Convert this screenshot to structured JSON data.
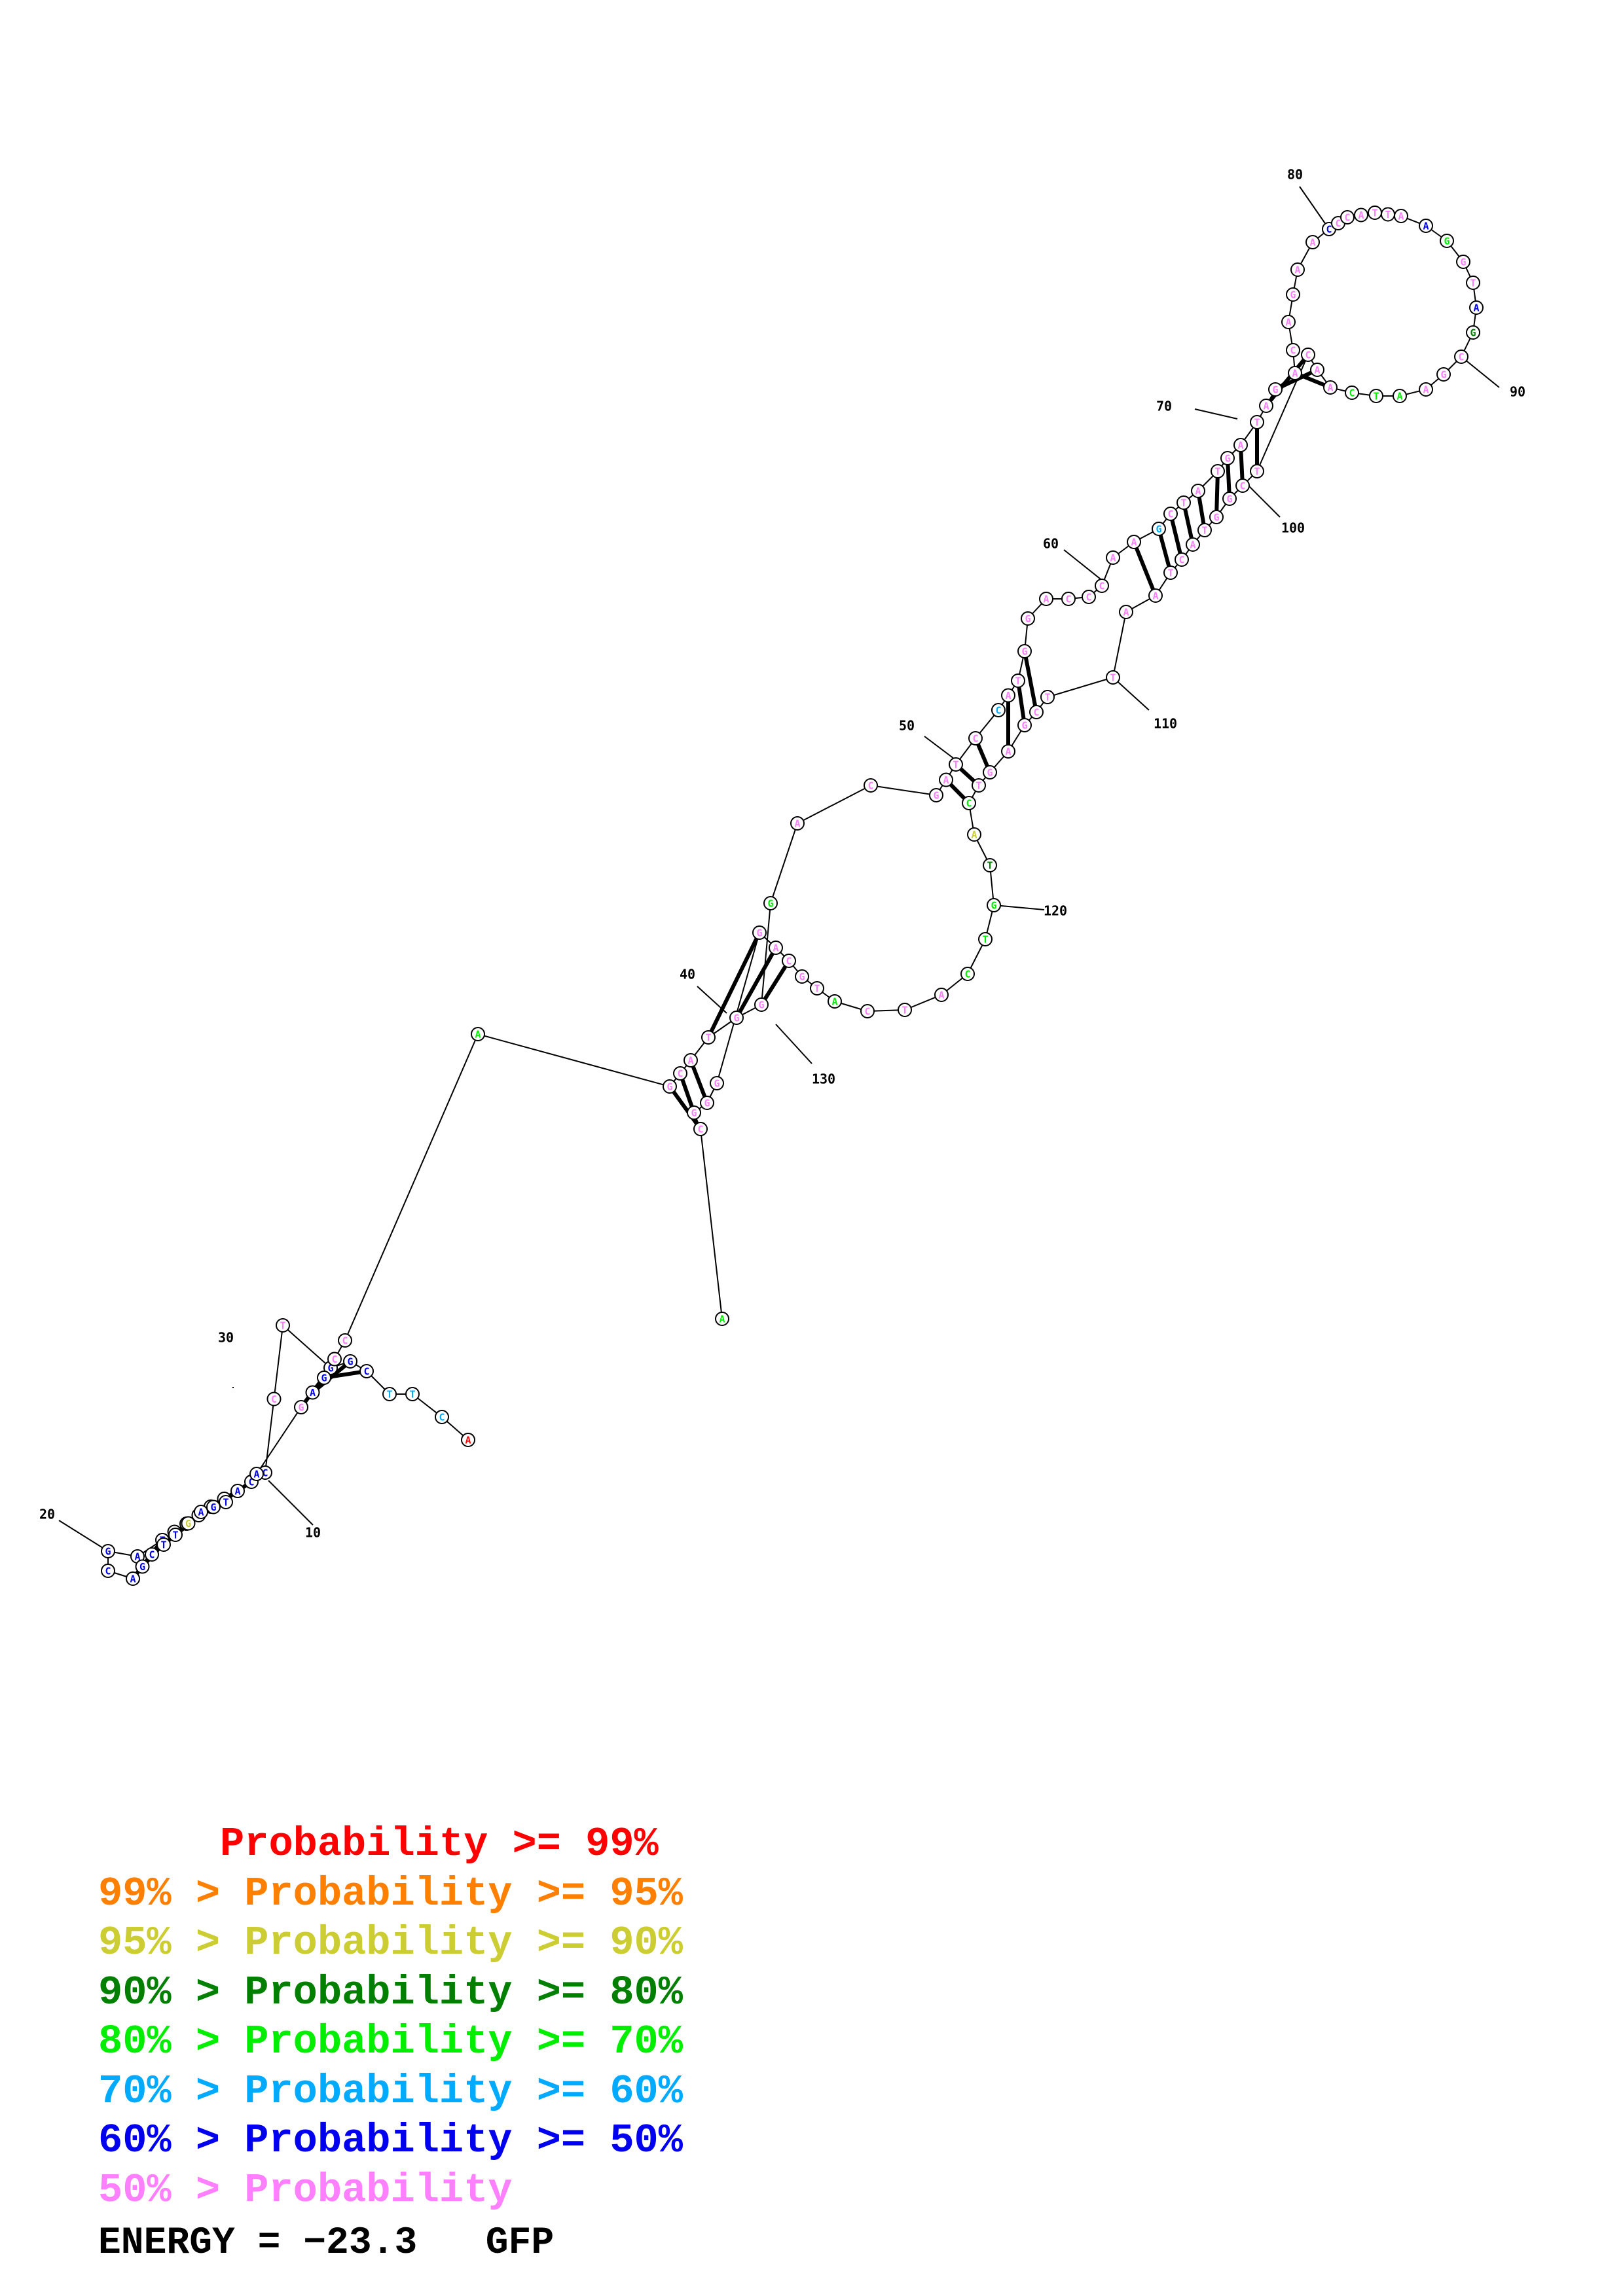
{
  "molecule_name": "GFP",
  "energy_label": "ENERGY = −23.3",
  "position_labels": [
    "10",
    "20",
    "30",
    "40",
    "50",
    "60",
    "70",
    "80",
    "90",
    "100",
    "110",
    "120",
    "130"
  ],
  "legend": [
    {
      "prefix": "     ",
      "text": "Probability >= 99%",
      "color": "#ff0000"
    },
    {
      "prefix": "99% > ",
      "text": "Probability >= 95%",
      "color": "#ff8000"
    },
    {
      "prefix": "95% > ",
      "text": "Probability >= 90%",
      "color": "#cccc33"
    },
    {
      "prefix": "90% > ",
      "text": "Probability >= 80%",
      "color": "#007f00"
    },
    {
      "prefix": "80% > ",
      "text": "Probability >= 70%",
      "color": "#00ee00"
    },
    {
      "prefix": "70% > ",
      "text": "Probability >= 60%",
      "color": "#00aaff"
    },
    {
      "prefix": "60% > ",
      "text": "Probability >= 50%",
      "color": "#0000ee"
    },
    {
      "prefix": "50% > ",
      "text": "Probability",
      "color": "#ff80ff"
    }
  ],
  "colors": {
    "p99": "#ff0000",
    "p95": "#ff8000",
    "p90": "#cccc33",
    "p80": "#007f00",
    "p70": "#00ee00",
    "p60": "#00aaff",
    "p50": "#0000ee",
    "low": "#ff80ff"
  },
  "sequence": "ACTTCGGTCCCACCTGCTAGCAGCTTGAGTAGAGCCAGCATGGGACGATCCATGGACCCAAGCTATGATAGACAGAACCCATTAAGGTAGCGAATCAACTCGGTACTAATTCGAGTCATGTCATCATGCAGGGGCA"
}
